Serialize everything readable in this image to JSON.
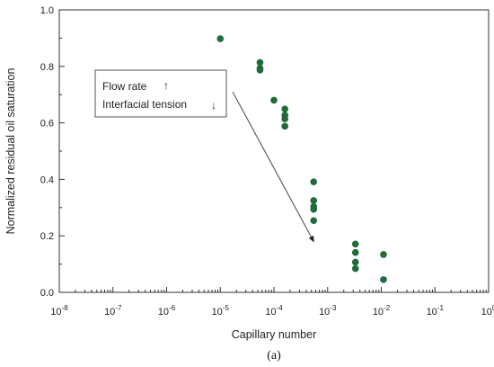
{
  "chart_data": {
    "type": "scatter",
    "xlabel": "Capillary number",
    "ylabel": "Normalized residual oil saturation",
    "x_scale": "log",
    "xlim": [
      1e-08,
      1
    ],
    "ylim": [
      0,
      1
    ],
    "x_tick_exponents": [
      "-8",
      "-7",
      "-6",
      "-5",
      "-4",
      "-3",
      "-2",
      "-1",
      "0"
    ],
    "y_ticks": [
      "0.0",
      "0.2",
      "0.4",
      "0.6",
      "0.8",
      "1.0"
    ],
    "grid": false,
    "marker_color": "#1f6b3a",
    "points": [
      {
        "x": 1e-05,
        "y": 0.898
      },
      {
        "x": 5.5e-05,
        "y": 0.814
      },
      {
        "x": 5.5e-05,
        "y": 0.793
      },
      {
        "x": 5.5e-05,
        "y": 0.787
      },
      {
        "x": 0.0001,
        "y": 0.68
      },
      {
        "x": 0.00016,
        "y": 0.649
      },
      {
        "x": 0.00016,
        "y": 0.627
      },
      {
        "x": 0.00016,
        "y": 0.614
      },
      {
        "x": 0.00016,
        "y": 0.588
      },
      {
        "x": 0.00055,
        "y": 0.391
      },
      {
        "x": 0.00055,
        "y": 0.325
      },
      {
        "x": 0.00055,
        "y": 0.304
      },
      {
        "x": 0.00055,
        "y": 0.294
      },
      {
        "x": 0.00055,
        "y": 0.254
      },
      {
        "x": 0.0033,
        "y": 0.171
      },
      {
        "x": 0.0033,
        "y": 0.141
      },
      {
        "x": 0.0033,
        "y": 0.107
      },
      {
        "x": 0.0033,
        "y": 0.084
      },
      {
        "x": 0.011,
        "y": 0.134
      },
      {
        "x": 0.011,
        "y": 0.045
      }
    ],
    "annotation": {
      "line1": "Flow rate",
      "line1_arrow": "↑",
      "line2": "Interfacial tension",
      "line2_arrow": "↓",
      "arrow_from": {
        "x": 0.0001,
        "y": 0.71
      },
      "arrow_to": {
        "x": 0.00055,
        "y": 0.18
      }
    },
    "panel_label": "(a)"
  }
}
